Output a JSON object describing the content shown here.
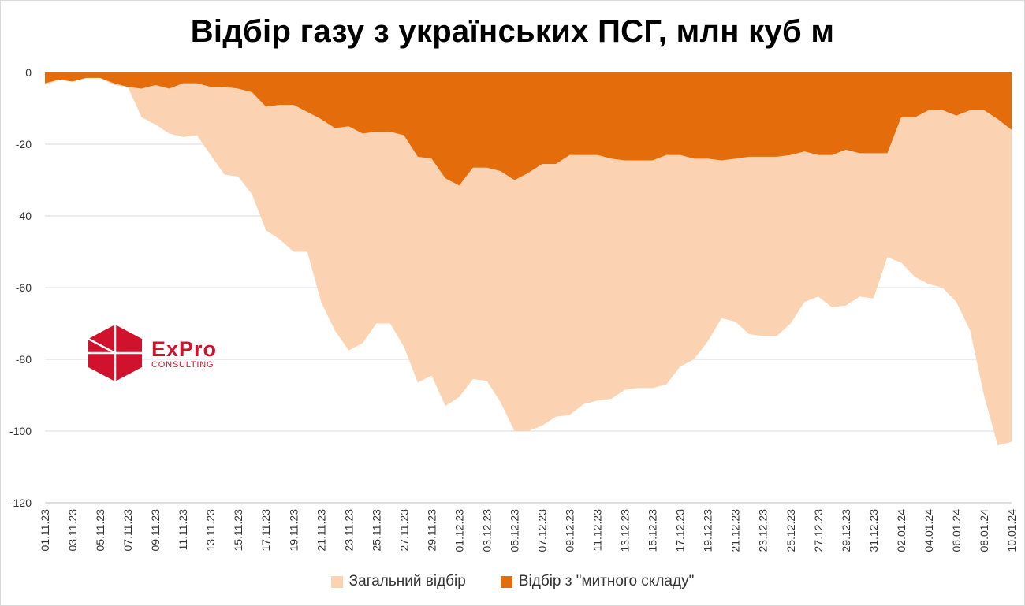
{
  "chart_data": {
    "type": "area",
    "title": "Відбір газу з українських ПСГ, млн куб м",
    "ylim": [
      -120,
      0
    ],
    "yticks": [
      0,
      -20,
      -40,
      -60,
      -80,
      -100,
      -120
    ],
    "grid": true,
    "legend_position": "bottom",
    "x": [
      "01.11.23",
      "02.11.23",
      "03.11.23",
      "04.11.23",
      "05.11.23",
      "06.11.23",
      "07.11.23",
      "08.11.23",
      "09.11.23",
      "10.11.23",
      "11.11.23",
      "12.11.23",
      "13.11.23",
      "14.11.23",
      "15.11.23",
      "16.11.23",
      "17.11.23",
      "18.11.23",
      "19.11.23",
      "20.11.23",
      "21.11.23",
      "22.11.23",
      "23.11.23",
      "24.11.23",
      "25.11.23",
      "26.11.23",
      "27.11.23",
      "28.11.23",
      "29.11.23",
      "30.11.23",
      "01.12.23",
      "02.12.23",
      "03.12.23",
      "04.12.23",
      "05.12.23",
      "06.12.23",
      "07.12.23",
      "08.12.23",
      "09.12.23",
      "10.12.23",
      "11.12.23",
      "12.12.23",
      "13.12.23",
      "14.12.23",
      "15.12.23",
      "16.12.23",
      "17.12.23",
      "18.12.23",
      "19.12.23",
      "20.12.23",
      "21.12.23",
      "22.12.23",
      "23.12.23",
      "24.12.23",
      "25.12.23",
      "26.12.23",
      "27.12.23",
      "28.12.23",
      "29.12.23",
      "30.12.23",
      "31.12.23",
      "01.01.24",
      "02.01.24",
      "03.01.24",
      "04.01.24",
      "05.01.24",
      "06.01.24",
      "07.01.24",
      "08.01.24",
      "09.01.24",
      "10.01.24"
    ],
    "tick_labels": [
      "01.11.23",
      "03.11.23",
      "05.11.23",
      "07.11.23",
      "09.11.23",
      "11.11.23",
      "13.11.23",
      "15.11.23",
      "17.11.23",
      "19.11.23",
      "21.11.23",
      "23.11.23",
      "25.11.23",
      "27.11.23",
      "29.11.23",
      "01.12.23",
      "03.12.23",
      "05.12.23",
      "07.12.23",
      "09.12.23",
      "11.12.23",
      "13.12.23",
      "15.12.23",
      "17.12.23",
      "19.12.23",
      "21.12.23",
      "23.12.23",
      "25.12.23",
      "27.12.23",
      "29.12.23",
      "31.12.23",
      "02.01.24",
      "04.01.24",
      "06.01.24",
      "08.01.24",
      "10.01.24"
    ],
    "series": [
      {
        "name": "Загальний відбір",
        "color": "#fbd3b2",
        "values": [
          -3.5,
          -2,
          -2.5,
          -1.5,
          -1.5,
          -3.5,
          -4,
          -12.5,
          -14.5,
          -17,
          -18,
          -17.5,
          -23,
          -28.5,
          -29,
          -34,
          -44,
          -46.5,
          -50,
          -50,
          -64,
          -72,
          -77.5,
          -75.5,
          -70,
          -70,
          -76.5,
          -86.5,
          -84.5,
          -93,
          -90.5,
          -85.5,
          -86,
          -92,
          -100,
          -100,
          -98.5,
          -96,
          -95.5,
          -92.5,
          -91.5,
          -91,
          -88.5,
          -88,
          -88,
          -87,
          -82,
          -80,
          -75,
          -68.5,
          -69.5,
          -73,
          -73.5,
          -73.5,
          -70,
          -64,
          -62.5,
          -65.5,
          -65,
          -62.5,
          -63,
          -51.5,
          -53,
          -57,
          -59,
          -60,
          -64,
          -72,
          -90,
          -104,
          -103
        ]
      },
      {
        "name": "Відбір з \"митного складу\"",
        "color": "#e46c0a",
        "values": [
          -3,
          -2,
          -2.5,
          -1.5,
          -1.5,
          -3,
          -4,
          -4.5,
          -3.5,
          -4.5,
          -3,
          -3,
          -4,
          -4,
          -4.5,
          -5.5,
          -9.5,
          -9,
          -9,
          -11,
          -13,
          -15.5,
          -15,
          -17,
          -16.5,
          -16.5,
          -17.5,
          -23.5,
          -24,
          -29.5,
          -31.5,
          -26.5,
          -26.5,
          -27.5,
          -30,
          -28,
          -25.5,
          -25.5,
          -23,
          -23,
          -23,
          -24,
          -24.5,
          -24.5,
          -24.5,
          -23,
          -23,
          -24,
          -24,
          -24.5,
          -24,
          -23.5,
          -23.5,
          -23.5,
          -23,
          -22,
          -23,
          -23,
          -21.5,
          -22.5,
          -22.5,
          -22.5,
          -12.5,
          -12.5,
          -10.5,
          -10.5,
          -12,
          -10.5,
          -10.5,
          -13,
          -16
        ]
      }
    ]
  },
  "logo": {
    "name": "ExPro",
    "subtitle": "CONSULTING",
    "color": "#d0122d"
  }
}
